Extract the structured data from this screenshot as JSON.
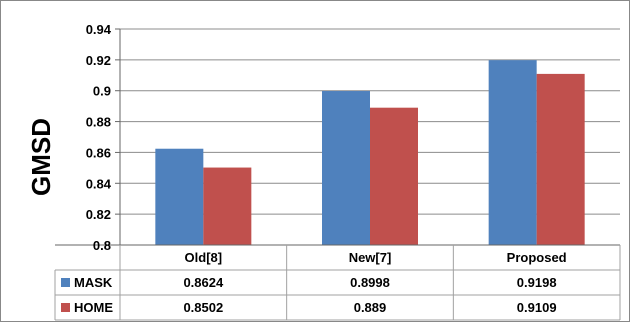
{
  "chart_data": {
    "type": "bar",
    "ylabel": "GMSD",
    "ylim": [
      0.8,
      0.94
    ],
    "yticks": [
      "0.8",
      "0.82",
      "0.84",
      "0.86",
      "0.88",
      "0.9",
      "0.92",
      "0.94"
    ],
    "ytick_values": [
      0.8,
      0.82,
      0.84,
      0.86,
      0.88,
      0.9,
      0.92,
      0.94
    ],
    "grid": true,
    "legend": "data-table-below",
    "categories": [
      "Old[8]",
      "New[7]",
      "Proposed"
    ],
    "series": [
      {
        "name": "MASK",
        "color": "#4f81bd",
        "values": [
          0.8624,
          0.8998,
          0.9198
        ],
        "labels": [
          "0.8624",
          "0.8998",
          "0.9198"
        ]
      },
      {
        "name": "HOME",
        "color": "#c0504d",
        "values": [
          0.8502,
          0.889,
          0.9109
        ],
        "labels": [
          "0.8502",
          "0.889",
          "0.9109"
        ]
      }
    ]
  }
}
